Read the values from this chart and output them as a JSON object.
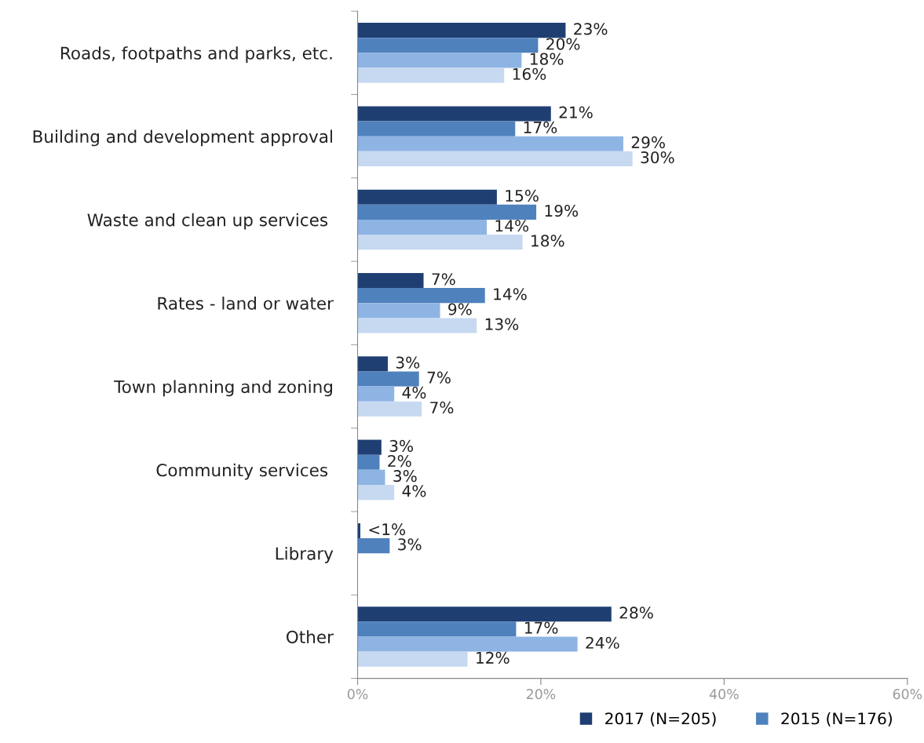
{
  "chart_data": {
    "type": "bar",
    "orientation": "horizontal",
    "categories": [
      "Roads, footpaths and parks, etc.",
      "Building and development approval",
      "Waste and clean up services ",
      "Rates - land or water",
      "Town planning and zoning",
      "Community services ",
      "Library",
      "Other"
    ],
    "series": [
      {
        "name": "2017 (N=205)",
        "color": "#1f3f73",
        "values": [
          22.7,
          21.1,
          15.2,
          7.2,
          3.3,
          2.6,
          0.3,
          27.7
        ],
        "value_labels": [
          "23%",
          "21%",
          "15%",
          "7%",
          "3%",
          "3%",
          "<1%",
          "28%"
        ]
      },
      {
        "name": "2015 (N=176)",
        "color": "#4f81bd",
        "values": [
          19.7,
          17.2,
          19.5,
          13.9,
          6.7,
          2.4,
          3.5,
          17.3
        ],
        "value_labels": [
          "20%",
          "17%",
          "19%",
          "14%",
          "7%",
          "2%",
          "3%",
          "17%"
        ]
      },
      {
        "color": "#8eb4e3",
        "values": [
          17.9,
          29.0,
          14.1,
          9.0,
          4.0,
          3.0,
          null,
          24.0
        ],
        "value_labels": [
          "18%",
          "29%",
          "14%",
          "9%",
          "4%",
          "3%",
          null,
          "24%"
        ]
      },
      {
        "color": "#c6d9f1",
        "values": [
          16.0,
          30.0,
          18.0,
          13.0,
          7.0,
          4.0,
          null,
          12.0
        ],
        "value_labels": [
          "16%",
          "30%",
          "18%",
          "13%",
          "7%",
          "4%",
          null,
          "12%"
        ]
      }
    ],
    "xlim": [
      0,
      60
    ],
    "xticks": [
      {
        "value": 0,
        "label": "0%"
      },
      {
        "value": 20,
        "label": "20%"
      },
      {
        "value": 40,
        "label": "40%"
      },
      {
        "value": 60,
        "label": "60%"
      }
    ],
    "grid": false,
    "legend": "bottom right"
  }
}
